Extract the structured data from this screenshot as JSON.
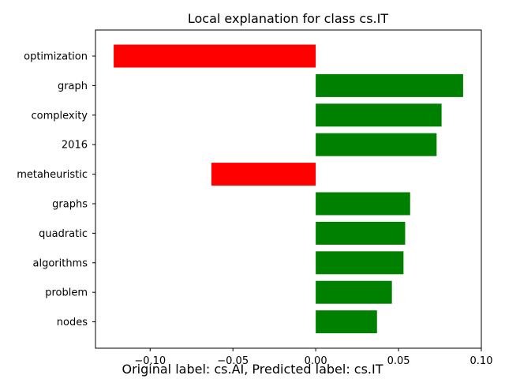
{
  "chart_data": {
    "type": "bar",
    "orientation": "horizontal",
    "title": "Local explanation for class cs.IT",
    "categories": [
      "optimization",
      "graph",
      "complexity",
      "2016",
      "metaheuristic",
      "graphs",
      "quadratic",
      "algorithms",
      "problem",
      "nodes"
    ],
    "values": [
      -0.122,
      0.089,
      0.076,
      0.073,
      -0.063,
      0.057,
      0.054,
      0.053,
      0.046,
      0.037
    ],
    "xlim": [
      -0.133,
      0.1
    ],
    "xticks": [
      -0.1,
      -0.05,
      0.0,
      0.05,
      0.1
    ],
    "xtick_labels": [
      "−0.10",
      "−0.05",
      "0.00",
      "0.05",
      "0.10"
    ],
    "positive_color": "#008000",
    "negative_color": "#ff0000",
    "grid": false
  },
  "caption": "Original label: cs.AI, Predicted label: cs.IT"
}
